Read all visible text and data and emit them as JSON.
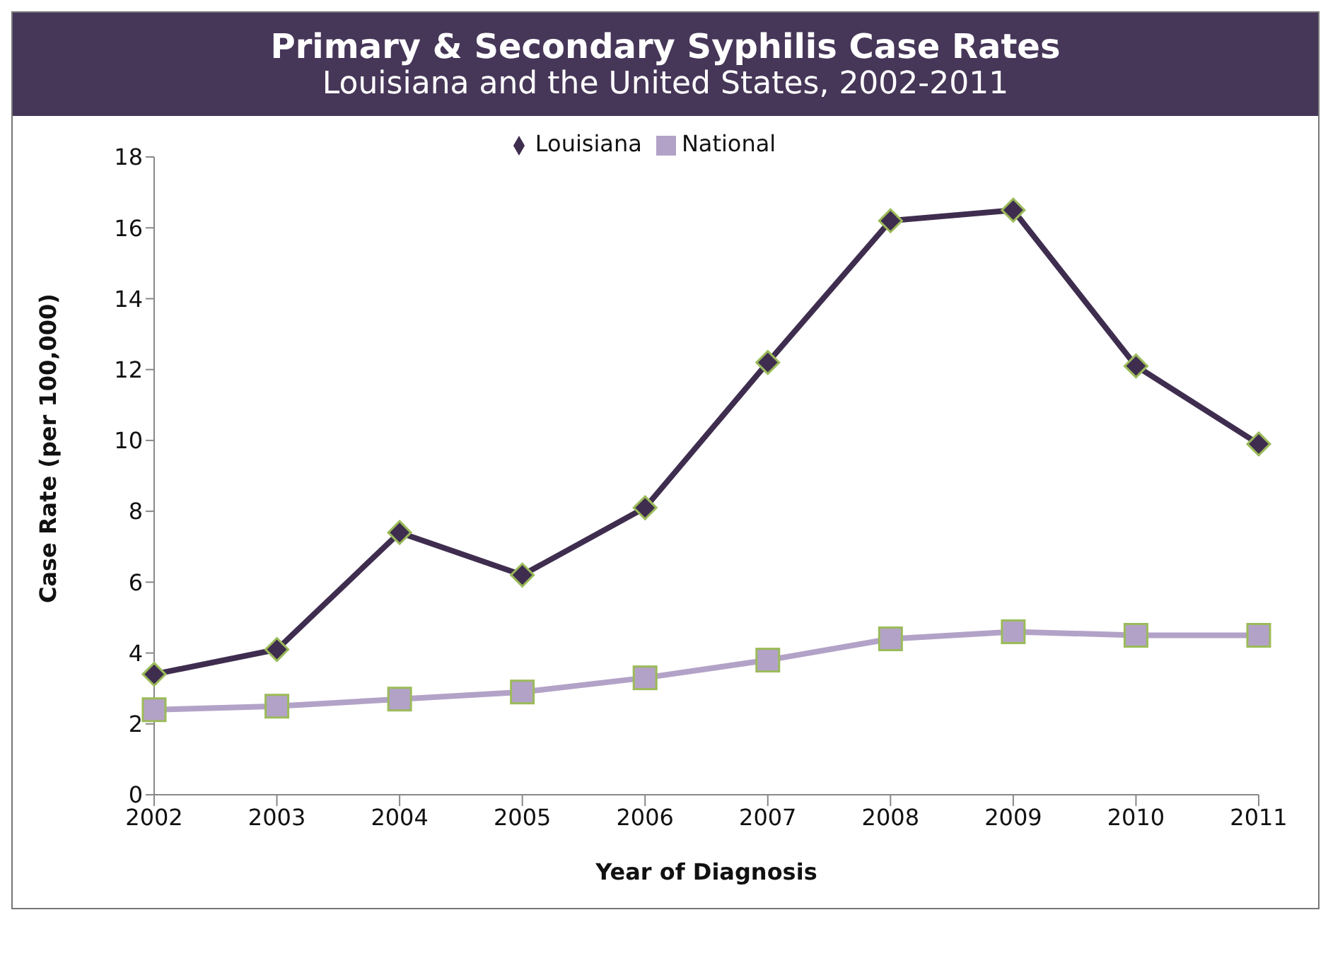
{
  "chart_data": {
    "type": "line",
    "title": "Primary & Secondary Syphilis Case Rates",
    "subtitle": "Louisiana and the United States, 2002-2011",
    "xlabel": "Year of Diagnosis",
    "ylabel": "Case Rate (per 100,000)",
    "categories": [
      "2002",
      "2003",
      "2004",
      "2005",
      "2006",
      "2007",
      "2008",
      "2009",
      "2010",
      "2011"
    ],
    "series": [
      {
        "name": "Louisiana",
        "color": "#3f2d4f",
        "marker": "diamond",
        "values": [
          3.4,
          4.1,
          7.4,
          6.2,
          8.1,
          12.2,
          16.2,
          16.5,
          12.1,
          9.9
        ]
      },
      {
        "name": "National",
        "color": "#b3a2c7",
        "marker": "square",
        "values": [
          2.4,
          2.5,
          2.7,
          2.9,
          3.3,
          3.8,
          4.4,
          4.6,
          4.5,
          4.5
        ]
      }
    ],
    "ylim": [
      0,
      18
    ],
    "yticks": [
      0,
      2,
      4,
      6,
      8,
      10,
      12,
      14,
      16,
      18
    ],
    "grid": false,
    "legend": "top"
  }
}
